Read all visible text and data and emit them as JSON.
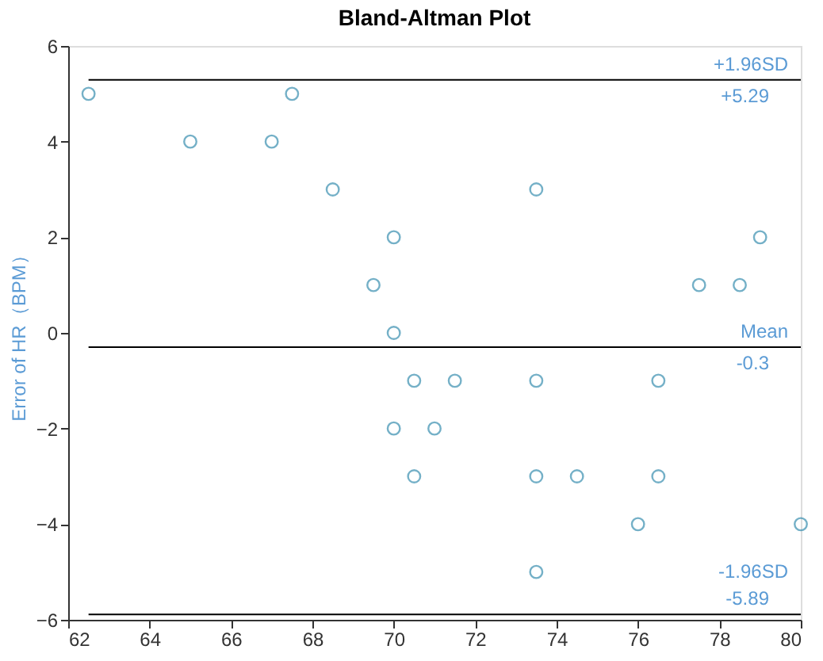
{
  "chart_data": {
    "type": "scatter",
    "title": "Bland-Altman Plot",
    "ylabel": "Error of HR（BPM）",
    "x": [
      62.5,
      65,
      67,
      67.5,
      68.5,
      70,
      69.5,
      70,
      70.5,
      70,
      71,
      70.5,
      71.5,
      73.5,
      73.5,
      73.5,
      73.5,
      74.5,
      76,
      76.5,
      76.5,
      77.5,
      78.5,
      79,
      80
    ],
    "series": [
      {
        "color": "#3a8fb0",
        "values": [
          5,
          4,
          4,
          5,
          3,
          2,
          1,
          0,
          -1,
          -2,
          -2,
          -3,
          -1,
          3,
          -1,
          -3,
          -5,
          -3,
          -4,
          -1,
          -3,
          1,
          1,
          2,
          -4
        ]
      }
    ],
    "marker": "circle",
    "xlim": [
      62,
      80
    ],
    "ylim": [
      -6,
      6
    ],
    "xticks": [
      62,
      64,
      66,
      68,
      70,
      72,
      74,
      76,
      78,
      80
    ],
    "yticks": [
      -6,
      -4,
      -2,
      0,
      2,
      4,
      6
    ],
    "grid": false,
    "ref_lines": [
      {
        "axis": "y",
        "value": 5.29,
        "label": "+1.96SD",
        "color": "#000000"
      },
      {
        "axis": "y",
        "value": -0.3,
        "label": "Mean",
        "color": "#000000"
      },
      {
        "axis": "y",
        "value": -5.89,
        "label": "-1.96SD",
        "color": "#000000"
      }
    ],
    "annotations": [
      "+5.29",
      "-0.3",
      "-5.89"
    ]
  }
}
